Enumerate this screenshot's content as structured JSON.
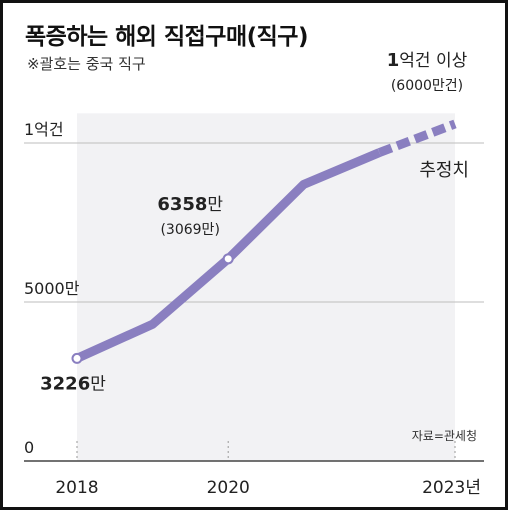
{
  "title": "폭증하는 해외 직접구매(직구)",
  "subtitle": "※괄호는 중국 직구",
  "source": "자료=관세청",
  "colors": {
    "line": "#8a7fc0",
    "shade": "#f2f2f4",
    "grid": "#bdbdbd",
    "axis": "#444444",
    "text": "#222222"
  },
  "chart_data": {
    "type": "line",
    "x": [
      2018,
      2019,
      2020,
      2021,
      2022,
      2023
    ],
    "values": [
      3226,
      4300,
      6358,
      8700,
      9700,
      10600
    ],
    "estimated_from_index": 4,
    "ylim": [
      0,
      11500
    ],
    "y_ticks": [
      {
        "value": 0,
        "label": "0"
      },
      {
        "value": 5000,
        "label": "5000만"
      },
      {
        "value": 10000,
        "label": "1억건"
      }
    ],
    "x_ticks": [
      {
        "value": 2018,
        "label": "2018"
      },
      {
        "value": 2020,
        "label": "2020"
      },
      {
        "value": 2023,
        "label": "2023년"
      }
    ],
    "labels": [
      {
        "index": 0,
        "bold": "3226",
        "unit": "만",
        "sub": ""
      },
      {
        "index": 2,
        "bold": "6358",
        "unit": "만",
        "sub": "(3069만)"
      },
      {
        "index": 5,
        "bold": "1",
        "unit": "억건 이상",
        "sub": "(6000만건)"
      }
    ],
    "estimate_label": "추정치",
    "markers_at": [
      0,
      2
    ]
  }
}
